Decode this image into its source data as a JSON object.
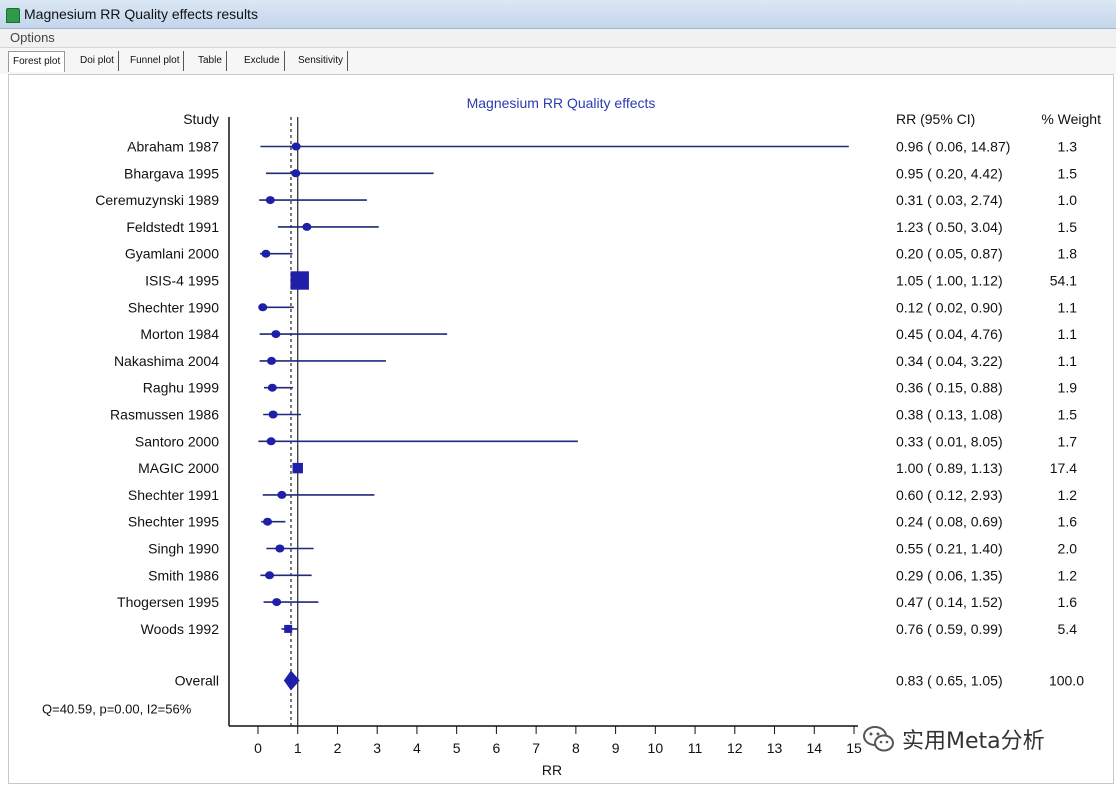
{
  "window": {
    "title": "Magnesium RR Quality effects results"
  },
  "menu": {
    "options_label": "Options"
  },
  "tabs": [
    {
      "label": "Forest plot",
      "active": true
    },
    {
      "label": "Doi plot",
      "active": false
    },
    {
      "label": "Funnel plot",
      "active": false
    },
    {
      "label": "Table",
      "active": false
    },
    {
      "label": "Exclude",
      "active": false
    },
    {
      "label": "Sensitivity",
      "active": false
    }
  ],
  "colors": {
    "marker": "#1f1fa8",
    "line": "#1f2a7a",
    "axis": "#111111",
    "title": "#2b3bb0"
  },
  "chart_data": {
    "type": "forest",
    "title": "Magnesium RR Quality effects",
    "study_header": "Study",
    "ci_header": "RR (95% CI)",
    "weight_header": "% Weight",
    "xlabel": "RR",
    "xlim": [
      0,
      15
    ],
    "x_ticks": [
      "0",
      "1",
      "2",
      "3",
      "4",
      "5",
      "6",
      "7",
      "8",
      "9",
      "10",
      "11",
      "12",
      "13",
      "14",
      "15"
    ],
    "reference_line": 1,
    "overall_reference": 0.83,
    "studies": [
      {
        "name": "Abraham 1987",
        "rr": 0.96,
        "lo": 0.06,
        "hi": 14.87,
        "ci_text": "0.96 ( 0.06, 14.87)",
        "weight": "1.3"
      },
      {
        "name": "Bhargava 1995",
        "rr": 0.95,
        "lo": 0.2,
        "hi": 4.42,
        "ci_text": "0.95 ( 0.20, 4.42)",
        "weight": "1.5"
      },
      {
        "name": "Ceremuzynski 1989",
        "rr": 0.31,
        "lo": 0.03,
        "hi": 2.74,
        "ci_text": "0.31 ( 0.03, 2.74)",
        "weight": "1.0"
      },
      {
        "name": "Feldstedt 1991",
        "rr": 1.23,
        "lo": 0.5,
        "hi": 3.04,
        "ci_text": "1.23 ( 0.50, 3.04)",
        "weight": "1.5"
      },
      {
        "name": "Gyamlani 2000",
        "rr": 0.2,
        "lo": 0.05,
        "hi": 0.87,
        "ci_text": "0.20 ( 0.05, 0.87)",
        "weight": "1.8"
      },
      {
        "name": "ISIS-4 1995",
        "rr": 1.05,
        "lo": 1.0,
        "hi": 1.12,
        "ci_text": "1.05 ( 1.00, 1.12)",
        "weight": "54.1"
      },
      {
        "name": "Shechter 1990",
        "rr": 0.12,
        "lo": 0.02,
        "hi": 0.9,
        "ci_text": "0.12 ( 0.02, 0.90)",
        "weight": "1.1"
      },
      {
        "name": "Morton 1984",
        "rr": 0.45,
        "lo": 0.04,
        "hi": 4.76,
        "ci_text": "0.45 ( 0.04, 4.76)",
        "weight": "1.1"
      },
      {
        "name": "Nakashima 2004",
        "rr": 0.34,
        "lo": 0.04,
        "hi": 3.22,
        "ci_text": "0.34 ( 0.04, 3.22)",
        "weight": "1.1"
      },
      {
        "name": "Raghu 1999",
        "rr": 0.36,
        "lo": 0.15,
        "hi": 0.88,
        "ci_text": "0.36 ( 0.15, 0.88)",
        "weight": "1.9"
      },
      {
        "name": "Rasmussen 1986",
        "rr": 0.38,
        "lo": 0.13,
        "hi": 1.08,
        "ci_text": "0.38 ( 0.13, 1.08)",
        "weight": "1.5"
      },
      {
        "name": "Santoro 2000",
        "rr": 0.33,
        "lo": 0.01,
        "hi": 8.05,
        "ci_text": "0.33 ( 0.01, 8.05)",
        "weight": "1.7"
      },
      {
        "name": "MAGIC 2000",
        "rr": 1.0,
        "lo": 0.89,
        "hi": 1.13,
        "ci_text": "1.00 ( 0.89, 1.13)",
        "weight": "17.4"
      },
      {
        "name": "Shechter 1991",
        "rr": 0.6,
        "lo": 0.12,
        "hi": 2.93,
        "ci_text": "0.60 ( 0.12, 2.93)",
        "weight": "1.2"
      },
      {
        "name": "Shechter 1995",
        "rr": 0.24,
        "lo": 0.08,
        "hi": 0.69,
        "ci_text": "0.24 ( 0.08, 0.69)",
        "weight": "1.6"
      },
      {
        "name": "Singh 1990",
        "rr": 0.55,
        "lo": 0.21,
        "hi": 1.4,
        "ci_text": "0.55 ( 0.21, 1.40)",
        "weight": "2.0"
      },
      {
        "name": "Smith 1986",
        "rr": 0.29,
        "lo": 0.06,
        "hi": 1.35,
        "ci_text": "0.29 ( 0.06, 1.35)",
        "weight": "1.2"
      },
      {
        "name": "Thogersen 1995",
        "rr": 0.47,
        "lo": 0.14,
        "hi": 1.52,
        "ci_text": "0.47 ( 0.14, 1.52)",
        "weight": "1.6"
      },
      {
        "name": "Woods 1992",
        "rr": 0.76,
        "lo": 0.59,
        "hi": 0.99,
        "ci_text": "0.76 ( 0.59, 0.99)",
        "weight": "5.4"
      }
    ],
    "overall": {
      "name": "Overall",
      "rr": 0.83,
      "lo": 0.65,
      "hi": 1.05,
      "ci_text": "0.83 ( 0.65, 1.05)",
      "weight": "100.0"
    },
    "heterogeneity": "Q=40.59, p=0.00, I2=56%"
  },
  "watermark": {
    "text": "实用Meta分析",
    "icon": "wechat-icon"
  }
}
